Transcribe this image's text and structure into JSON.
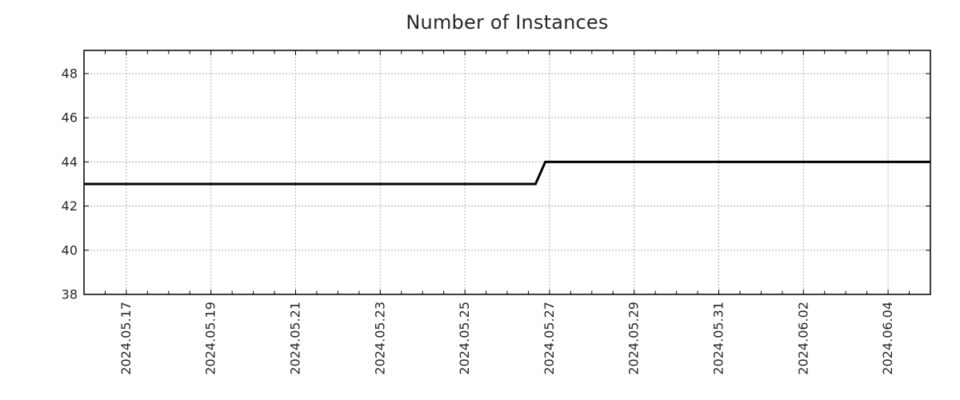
{
  "title": "Number of Instances",
  "colors": {
    "background": "#ffffff",
    "axis_border": "#000000",
    "tick": "#000000",
    "grid": "#b0b0b0",
    "text": "#262626",
    "line": "#000000"
  },
  "chart_data": {
    "type": "line",
    "title": "Number of Instances",
    "xlabel": "",
    "ylabel": "",
    "legend": null,
    "grid": {
      "show": true,
      "style": "dashed"
    },
    "x_axis": {
      "kind": "date",
      "start_date": "2024.05.16",
      "end_date": "2024.06.05",
      "span_days": 20,
      "tick_labels": [
        "2024.05.17",
        "2024.05.19",
        "2024.05.21",
        "2024.05.23",
        "2024.05.25",
        "2024.05.27",
        "2024.05.29",
        "2024.05.31",
        "2024.06.02",
        "2024.06.04"
      ],
      "tick_days": [
        1,
        3,
        5,
        7,
        9,
        11,
        13,
        15,
        17,
        19
      ],
      "minor_tick_step_days": 0.5,
      "label_rotation_deg": -90
    },
    "y_axis": {
      "min": 38,
      "max": 49.05,
      "tick_values": [
        38,
        40,
        42,
        44,
        46,
        48
      ]
    },
    "series": [
      {
        "name": "Number of Instances",
        "color": "#000000",
        "line_width": 3,
        "points": [
          {
            "date": "2024.05.16 00:00",
            "day": 0,
            "value": 43
          },
          {
            "date": "2024.05.26 16:00",
            "day": 10.67,
            "value": 43
          },
          {
            "date": "2024.05.26 21:30",
            "day": 10.9,
            "value": 44
          },
          {
            "date": "2024.06.05 00:00",
            "day": 20,
            "value": 44
          }
        ]
      }
    ]
  }
}
